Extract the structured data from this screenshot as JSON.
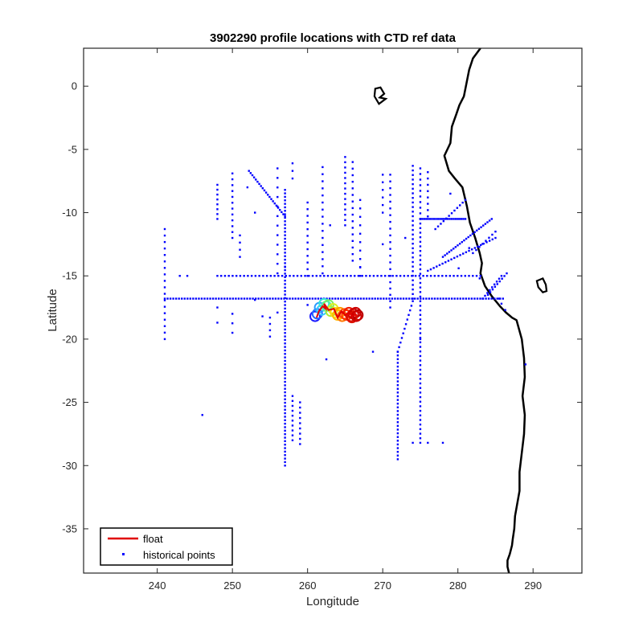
{
  "chart_data": {
    "type": "scatter",
    "title": "3902290 profile locations with CTD ref data",
    "xlabel": "Longitude",
    "ylabel": "Latitude",
    "xlim": [
      230.2,
      296.5
    ],
    "ylim": [
      -38.5,
      3
    ],
    "xticks": [
      240,
      250,
      260,
      270,
      280,
      290
    ],
    "yticks": [
      0,
      -5,
      -10,
      -15,
      -20,
      -25,
      -30,
      -35
    ],
    "grid": false,
    "legend": {
      "placement": "bottom-left",
      "entries": [
        {
          "label": "float",
          "color": "#e00000",
          "marker": "line"
        },
        {
          "label": "historical points",
          "color": "#0000ff",
          "marker": "dot"
        }
      ]
    },
    "colors": {
      "float": "#e00000",
      "historical": "#0000ff",
      "coast": "#000000"
    },
    "series": [
      {
        "name": "historical points",
        "kind": "points",
        "color": "#0000ff",
        "segments": [
          {
            "from": [
              241,
              -16.8
            ],
            "to": [
              286,
              -16.8
            ],
            "n": 120
          },
          {
            "from": [
              248,
              -15
            ],
            "to": [
              283,
              -15
            ],
            "n": 70
          },
          {
            "from": [
              257,
              -8.2
            ],
            "to": [
              257,
              -30
            ],
            "n": 80
          },
          {
            "from": [
              252.2,
              -6.7
            ],
            "to": [
              257,
              -10.3
            ],
            "n": 22
          },
          {
            "from": [
              274,
              -17
            ],
            "to": [
              272,
              -21
            ],
            "n": 12
          },
          {
            "from": [
              272,
              -21
            ],
            "to": [
              272,
              -29.5
            ],
            "n": 30
          },
          {
            "from": [
              274,
              -6.3
            ],
            "to": [
              274,
              -16.8
            ],
            "n": 30
          },
          {
            "from": [
              275,
              -6.5
            ],
            "to": [
              275,
              -10.5
            ],
            "n": 10
          },
          {
            "from": [
              275,
              -10.5
            ],
            "to": [
              281,
              -10.5
            ],
            "n": 24
          },
          {
            "from": [
              275,
              -10.5
            ],
            "to": [
              275,
              -28.2
            ],
            "n": 50
          },
          {
            "from": [
              241,
              -11.3
            ],
            "to": [
              241,
              -20
            ],
            "n": 18
          },
          {
            "from": [
              250,
              -6.9
            ],
            "to": [
              250,
              -12
            ],
            "n": 12
          },
          {
            "from": [
              248,
              -7.8
            ],
            "to": [
              248,
              -10.5
            ],
            "n": 8
          },
          {
            "from": [
              262,
              -6.4
            ],
            "to": [
              262,
              -14.8
            ],
            "n": 16
          },
          {
            "from": [
              265,
              -5.6
            ],
            "to": [
              265,
              -11
            ],
            "n": 14
          },
          {
            "from": [
              266,
              -6
            ],
            "to": [
              266,
              -13.8
            ],
            "n": 16
          },
          {
            "from": [
              267,
              -9
            ],
            "to": [
              267,
              -15
            ],
            "n": 10
          },
          {
            "from": [
              271,
              -7
            ],
            "to": [
              271,
              -15
            ],
            "n": 16
          },
          {
            "from": [
              270,
              -7
            ],
            "to": [
              270,
              -10
            ],
            "n": 6
          },
          {
            "from": [
              276,
              -6.8
            ],
            "to": [
              276,
              -10.3
            ],
            "n": 8
          },
          {
            "from": [
              256,
              -6.5
            ],
            "to": [
              256,
              -14.8
            ],
            "n": 12
          },
          {
            "from": [
              260,
              -9.2
            ],
            "to": [
              260,
              -15
            ],
            "n": 12
          },
          {
            "from": [
              258,
              -6.1
            ],
            "to": [
              258,
              -7.3
            ],
            "n": 3
          },
          {
            "from": [
              251,
              -11.8
            ],
            "to": [
              251,
              -13.5
            ],
            "n": 4
          },
          {
            "from": [
              250,
              -18
            ],
            "to": [
              250,
              -19.5
            ],
            "n": 3
          },
          {
            "from": [
              283.3,
              -16.8
            ],
            "to": [
              285.8,
              -15.0
            ],
            "n": 9
          },
          {
            "from": [
              284,
              -16.5
            ],
            "to": [
              286.5,
              -14.8
            ],
            "n": 9
          },
          {
            "from": [
              278,
              -13.5
            ],
            "to": [
              284.5,
              -10.5
            ],
            "n": 24
          },
          {
            "from": [
              276,
              -14.6
            ],
            "to": [
              285,
              -12
            ],
            "n": 24
          },
          {
            "from": [
              277,
              -11.3
            ],
            "to": [
              281,
              -9
            ],
            "n": 12
          },
          {
            "from": [
              282,
              -13.2
            ],
            "to": [
              285,
              -11.5
            ],
            "n": 8
          },
          {
            "from": [
              255,
              -18.3
            ],
            "to": [
              255,
              -19.8
            ],
            "n": 4
          },
          {
            "from": [
              258,
              -24.5
            ],
            "to": [
              258,
              -28
            ],
            "n": 10
          },
          {
            "from": [
              259,
              -25
            ],
            "to": [
              259,
              -28.3
            ],
            "n": 9
          },
          {
            "from": [
              271,
              -15.5
            ],
            "to": [
              271,
              -17.5
            ],
            "n": 5
          }
        ],
        "points": [
          [
            246,
            -26
          ],
          [
            289,
            -22
          ],
          [
            278,
            -28.2
          ],
          [
            276,
            -28.2
          ],
          [
            274,
            -28.2
          ],
          [
            279,
            -8.5
          ],
          [
            275,
            -20
          ],
          [
            262.5,
            -21.6
          ],
          [
            268.7,
            -21
          ],
          [
            285.5,
            -16.8
          ],
          [
            286.3,
            -17.7
          ],
          [
            285.8,
            -17.2
          ],
          [
            282.9,
            -15.2
          ],
          [
            254,
            -18.2
          ],
          [
            253,
            -16.9
          ],
          [
            244,
            -15
          ],
          [
            243,
            -15
          ],
          [
            248,
            -17.5
          ],
          [
            248,
            -18.7
          ],
          [
            260,
            -17.3
          ],
          [
            273,
            -12
          ],
          [
            270,
            -12.5
          ],
          [
            263,
            -11
          ],
          [
            252,
            -8
          ],
          [
            253,
            -10
          ],
          [
            256,
            -17.9
          ],
          [
            257,
            -14.3
          ],
          [
            267,
            -14.3
          ],
          [
            280.1,
            -14.4
          ],
          [
            281.5,
            -12.8
          ]
        ]
      },
      {
        "name": "float",
        "kind": "line",
        "color": "#e00000",
        "lon": [
          261.2,
          261.5,
          262.0,
          262.4,
          262.2,
          262.8,
          263.5,
          264.0,
          264.5,
          265.0,
          265.5,
          266.0,
          266.5
        ],
        "lat": [
          -18.3,
          -17.8,
          -17.4,
          -17.6,
          -17.2,
          -17.7,
          -17.6,
          -18.3,
          -17.8,
          -18.1,
          -17.9,
          -18.2,
          -18.0
        ]
      },
      {
        "name": "float markers",
        "kind": "colored-circles",
        "lon": [
          261.0,
          261.3,
          261.6,
          261.9,
          262.2,
          262.5,
          262.8,
          263.1,
          263.4,
          263.7,
          264.0,
          264.3,
          264.6,
          264.9,
          265.2,
          265.5,
          265.8,
          266.1,
          266.4,
          266.7,
          265.9,
          266.5
        ],
        "lat": [
          -18.2,
          -18.0,
          -17.5,
          -17.7,
          -17.2,
          -17.4,
          -17.3,
          -17.8,
          -17.6,
          -17.9,
          -18.1,
          -17.9,
          -18.2,
          -18.0,
          -18.1,
          -17.9,
          -18.2,
          -18.0,
          -17.9,
          -18.1,
          -18.3,
          -18.2
        ],
        "colors": [
          "#1a1aff",
          "#2266ff",
          "#2a9cff",
          "#33ccff",
          "#33e6d9",
          "#55eeaa",
          "#77ee66",
          "#aaee33",
          "#ddee22",
          "#ffdd11",
          "#ffbb00",
          "#ff9900",
          "#ff7700",
          "#ff5500",
          "#ff3300",
          "#ee1a00",
          "#dd1100",
          "#cc0000",
          "#cc0000",
          "#bb0000",
          "#dd1100",
          "#cc0000"
        ]
      }
    ],
    "coastline": {
      "lon": [
        283.0,
        282.0,
        281.5,
        280.8,
        280.2,
        279.8,
        279.2,
        279.0,
        278.2,
        278.8,
        279.6,
        280.6,
        281.2,
        281.6,
        282.3,
        282.9,
        283.2,
        283.0,
        283.6,
        284.5,
        285.6,
        286.4,
        287.2,
        287.8,
        288.5,
        288.8,
        288.9,
        288.6,
        288.9,
        288.8,
        288.5,
        288.2,
        288.2,
        287.9,
        287.6,
        287.5,
        287.3,
        287.2,
        286.9,
        286.6,
        286.6,
        286.8
      ],
      "lat": [
        3.0,
        2.2,
        1.3,
        -0.8,
        -1.5,
        -2.2,
        -3.2,
        -4.5,
        -5.5,
        -6.7,
        -7.3,
        -8.0,
        -9.5,
        -10.8,
        -12.0,
        -13.2,
        -14.0,
        -14.8,
        -15.8,
        -16.6,
        -17.4,
        -17.9,
        -18.3,
        -18.5,
        -20.0,
        -21.5,
        -23.0,
        -24.5,
        -26.0,
        -27.5,
        -29.0,
        -30.5,
        -32.0,
        -33.0,
        -34.0,
        -35.0,
        -35.8,
        -36.3,
        -37.0,
        -37.5,
        -38.0,
        -38.5
      ],
      "islands": [
        {
          "lon": [
            269.0,
            269.7,
            270.2,
            269.6,
            270.4,
            269.5,
            268.9,
            269.0
          ],
          "lat": [
            -0.2,
            -0.1,
            -0.6,
            -0.9,
            -1.0,
            -1.4,
            -0.8,
            -0.2
          ]
        },
        {
          "lon": [
            290.5,
            291.3,
            291.7,
            291.8,
            291.3,
            290.7,
            290.5
          ],
          "lat": [
            -15.4,
            -15.2,
            -15.7,
            -16.2,
            -16.3,
            -15.9,
            -15.4
          ]
        }
      ]
    }
  }
}
